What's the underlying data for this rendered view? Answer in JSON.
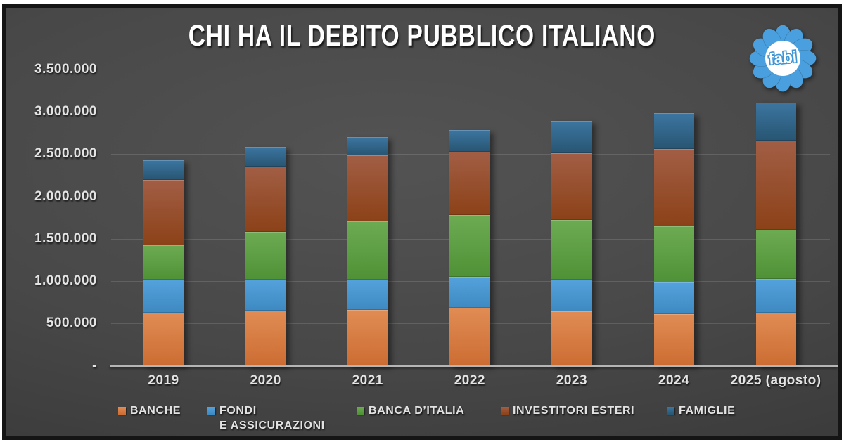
{
  "title": "CHI HA IL DEBITO PUBBLICO ITALIANO",
  "logo": {
    "text": "fabi",
    "petal_color": "#4aa0de",
    "center_color": "#ffffff",
    "text_color": "#3e96d6"
  },
  "chart_data": {
    "type": "bar",
    "stacked": true,
    "title": "CHI HA IL DEBITO PUBBLICO ITALIANO",
    "xlabel": "",
    "ylabel": "",
    "ylim": [
      0,
      3500000
    ],
    "grid": true,
    "legend_position": "bottom",
    "categories": [
      "2019",
      "2020",
      "2021",
      "2022",
      "2023",
      "2024",
      "2025 (agosto)"
    ],
    "series": [
      {
        "id": "banche",
        "name": "BANCHE",
        "legend_lines": [
          "BANCHE"
        ],
        "color_top": "#e08c54",
        "color_bottom": "#cc6d33",
        "swatch": "#d9773f",
        "values": [
          630000,
          650000,
          660000,
          685000,
          640000,
          610000,
          625000
        ]
      },
      {
        "id": "fondi-e-assicurazioni",
        "name": "FONDI E ASSICURAZIONI",
        "legend_lines": [
          "FONDI",
          "E ASSICURAZIONI"
        ],
        "color_top": "#54a2dd",
        "color_bottom": "#3e89c0",
        "swatch": "#4d9edb",
        "values": [
          385000,
          365000,
          360000,
          365000,
          375000,
          375000,
          400000
        ]
      },
      {
        "id": "banca-ditalia",
        "name": "BANCA D'ITALIA",
        "legend_lines": [
          "BANCA D’ITALIA"
        ],
        "color_top": "#6dab52",
        "color_bottom": "#4f9136",
        "swatch": "#61a345",
        "values": [
          410000,
          565000,
          685000,
          730000,
          705000,
          660000,
          580000
        ]
      },
      {
        "id": "investitori-esteri",
        "name": "INVESTITORI ESTERI",
        "legend_lines": [
          "INVESTITORI ESTERI"
        ],
        "color_top": "#a25e45",
        "color_bottom": "#8c4218",
        "swatch": "#8f4521",
        "values": [
          775000,
          775000,
          785000,
          745000,
          795000,
          915000,
          1055000
        ]
      },
      {
        "id": "famiglie",
        "name": "FAMIGLIE",
        "legend_lines": [
          "FAMIGLIE"
        ],
        "color_top": "#3c76a1",
        "color_bottom": "#285572",
        "swatch": "#316a93",
        "values": [
          230000,
          230000,
          215000,
          260000,
          380000,
          425000,
          450000
        ]
      }
    ],
    "y_ticks": [
      {
        "value": 3500000,
        "label": "3.500.000"
      },
      {
        "value": 3000000,
        "label": "3.000.000"
      },
      {
        "value": 2500000,
        "label": "2.500.000"
      },
      {
        "value": 2000000,
        "label": "2.000.000"
      },
      {
        "value": 1500000,
        "label": "1.500.000"
      },
      {
        "value": 1000000,
        "label": "1.000.000"
      },
      {
        "value": 500000,
        "label": "500.000"
      },
      {
        "value": 0,
        "label": "-"
      }
    ]
  }
}
